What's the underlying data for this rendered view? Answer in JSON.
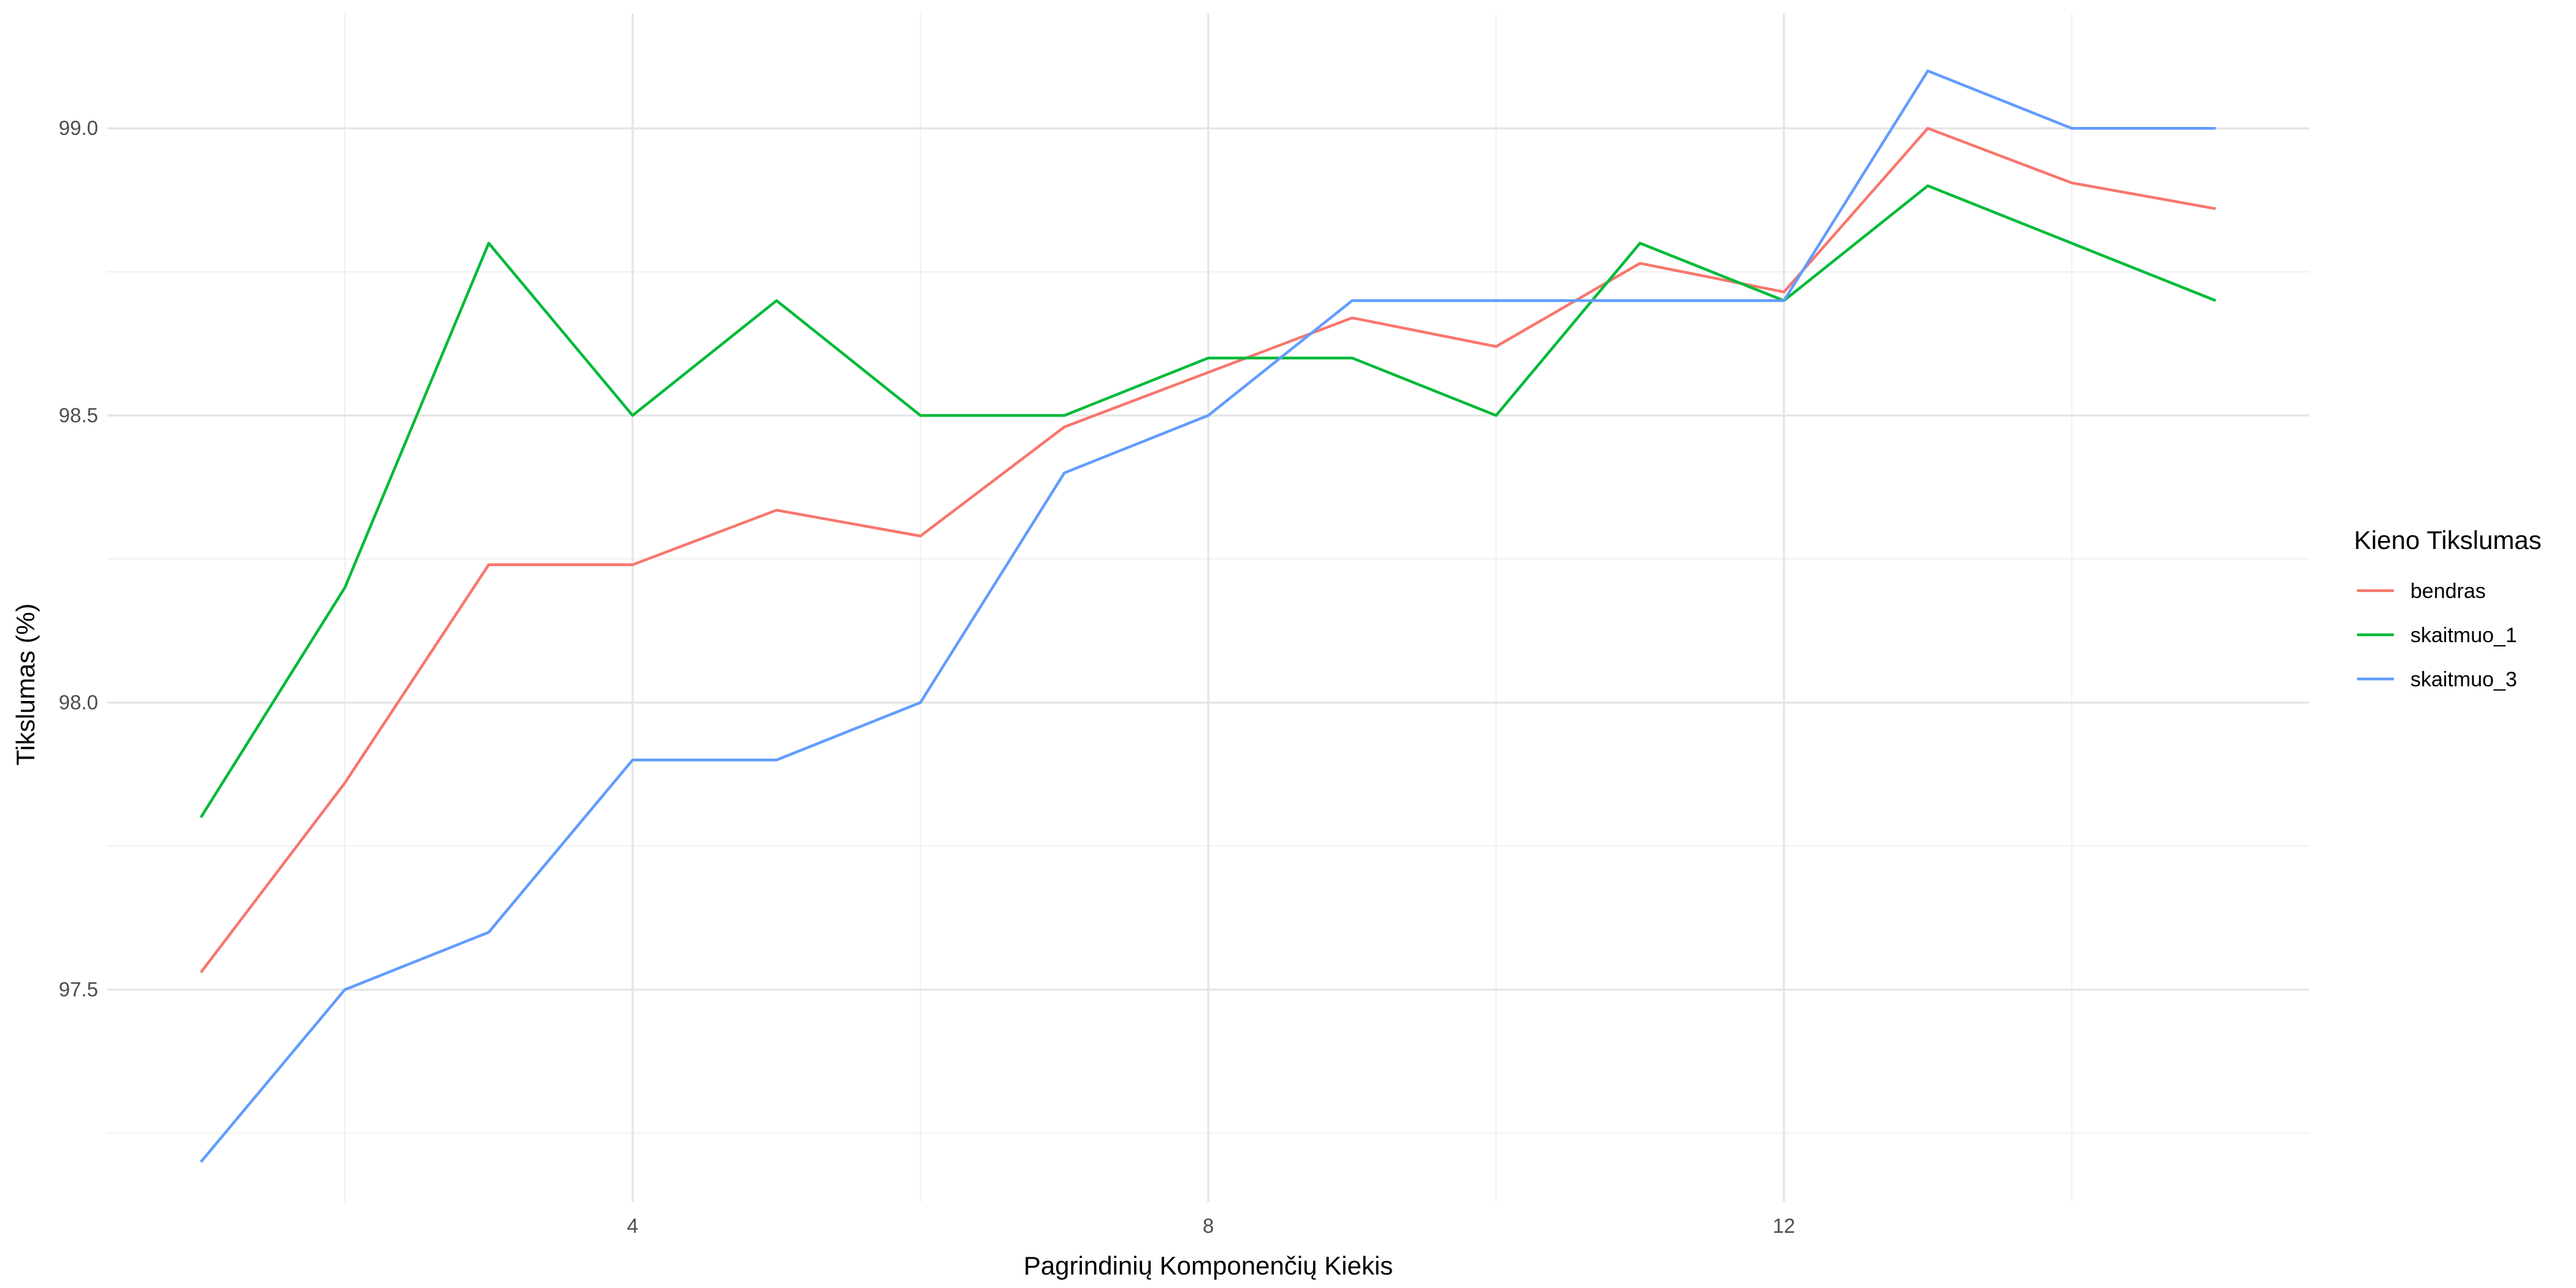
{
  "chart_data": {
    "type": "line",
    "xlabel": "Pagrindinių Komponenčių Kiekis",
    "ylabel": "Tikslumas (%)",
    "x": [
      1,
      2,
      3,
      4,
      5,
      6,
      7,
      8,
      9,
      10,
      11,
      12,
      13,
      14,
      15
    ],
    "xlim": [
      0.35,
      15.65
    ],
    "ylim": [
      97.13,
      99.2
    ],
    "x_ticks": [
      4,
      8,
      12
    ],
    "x_tick_labels": [
      "4",
      "8",
      "12"
    ],
    "x_minor_ticks": [
      2,
      6,
      10,
      14
    ],
    "y_ticks": [
      97.5,
      98.0,
      98.5,
      99.0
    ],
    "y_tick_labels": [
      "97.5",
      "98.0",
      "98.5",
      "99.0"
    ],
    "y_minor_ticks": [
      97.25,
      97.75,
      98.25,
      98.75
    ],
    "grid": true,
    "legend": {
      "title": "Kieno Tikslumas",
      "placement": "right"
    },
    "series": [
      {
        "name": "bendras",
        "color": "#F8766D",
        "values": [
          97.53,
          97.86,
          98.24,
          98.24,
          98.335,
          98.29,
          98.48,
          98.575,
          98.67,
          98.62,
          98.765,
          98.715,
          99.0,
          98.905,
          98.86
        ]
      },
      {
        "name": "skaitmuo_1",
        "color": "#00BA38",
        "values": [
          97.8,
          98.2,
          98.8,
          98.5,
          98.7,
          98.5,
          98.5,
          98.6,
          98.6,
          98.5,
          98.8,
          98.7,
          98.9,
          98.8,
          98.7
        ]
      },
      {
        "name": "skaitmuo_3",
        "color": "#619CFF",
        "values": [
          97.2,
          97.5,
          97.6,
          97.9,
          97.9,
          98.0,
          98.4,
          98.5,
          98.7,
          98.7,
          98.7,
          98.7,
          99.1,
          99.0,
          99.0
        ]
      }
    ]
  }
}
